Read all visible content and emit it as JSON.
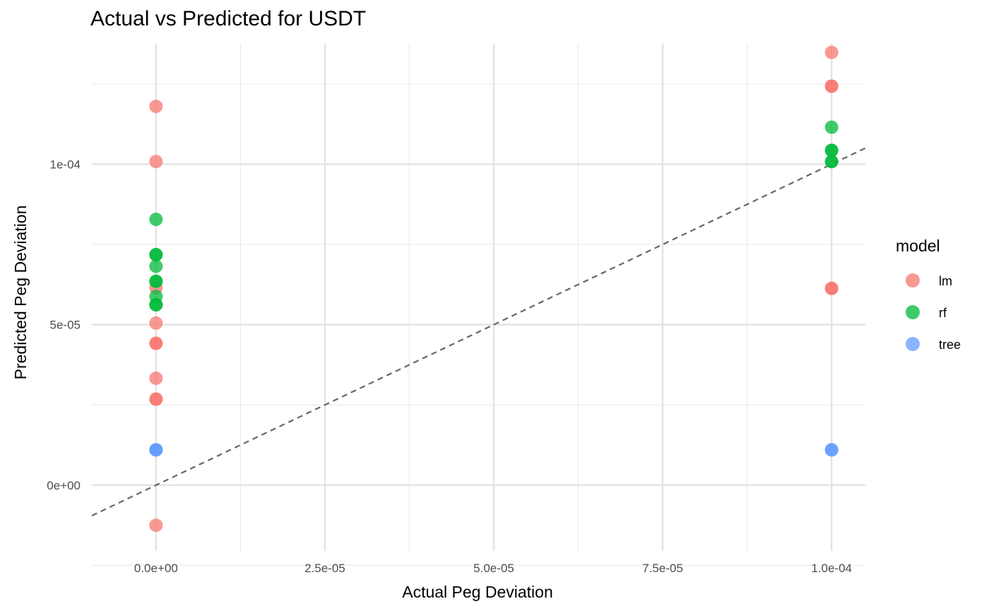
{
  "chart_data": {
    "type": "scatter",
    "title": "Actual vs Predicted for USDT",
    "xlabel": "Actual Peg Deviation",
    "ylabel": "Predicted Peg Deviation",
    "xlim": [
      -9.5e-06,
      0.000105
    ],
    "ylim": [
      -2.05e-05,
      0.0001375
    ],
    "x_ticks": [
      0,
      2.5e-05,
      5e-05,
      7.5e-05,
      0.0001
    ],
    "x_tick_labels": [
      "0.0e+00",
      "2.5e-05",
      "5.0e-05",
      "7.5e-05",
      "1.0e-04"
    ],
    "y_ticks": [
      0,
      5e-05,
      0.0001
    ],
    "y_tick_labels": [
      "0e+00",
      "5e-05",
      "1e-04"
    ],
    "grid": true,
    "reference_line": {
      "slope": 1,
      "intercept": 0,
      "style": "dashed",
      "color": "#666666"
    },
    "legend": {
      "title": "model",
      "position": "right"
    },
    "series": [
      {
        "name": "lm",
        "color": "#F8766D",
        "points": [
          [
            0,
            0.000118
          ],
          [
            0,
            0.0001008
          ],
          [
            0,
            6.15e-05
          ],
          [
            0,
            5.05e-05
          ],
          [
            0,
            4.42e-05
          ],
          [
            0,
            4.42e-05
          ],
          [
            0,
            3.33e-05
          ],
          [
            0,
            2.68e-05
          ],
          [
            0,
            2.68e-05
          ],
          [
            0,
            -1.25e-05
          ],
          [
            0.0001,
            0.0001348
          ],
          [
            0.0001,
            0.0001243
          ],
          [
            0.0001,
            0.0001243
          ],
          [
            0.0001,
            6.13e-05
          ],
          [
            0.0001,
            6.13e-05
          ]
        ]
      },
      {
        "name": "rf",
        "color": "#00BA38",
        "points": [
          [
            0,
            8.28e-05
          ],
          [
            0,
            7.18e-05
          ],
          [
            0,
            7.18e-05
          ],
          [
            0,
            6.82e-05
          ],
          [
            0,
            6.35e-05
          ],
          [
            0,
            6.35e-05
          ],
          [
            0,
            5.88e-05
          ],
          [
            0,
            5.62e-05
          ],
          [
            0,
            5.62e-05
          ],
          [
            0.0001,
            0.0001115
          ],
          [
            0.0001,
            0.0001043
          ],
          [
            0.0001,
            0.0001043
          ],
          [
            0.0001,
            0.0001008
          ],
          [
            0.0001,
            0.0001008
          ]
        ]
      },
      {
        "name": "tree",
        "color": "#619CFF",
        "points": [
          [
            0,
            1.1e-05
          ],
          [
            0,
            1.1e-05
          ],
          [
            0,
            1.1e-05
          ],
          [
            0.0001,
            1.1e-05
          ],
          [
            0.0001,
            1.1e-05
          ]
        ]
      }
    ]
  }
}
